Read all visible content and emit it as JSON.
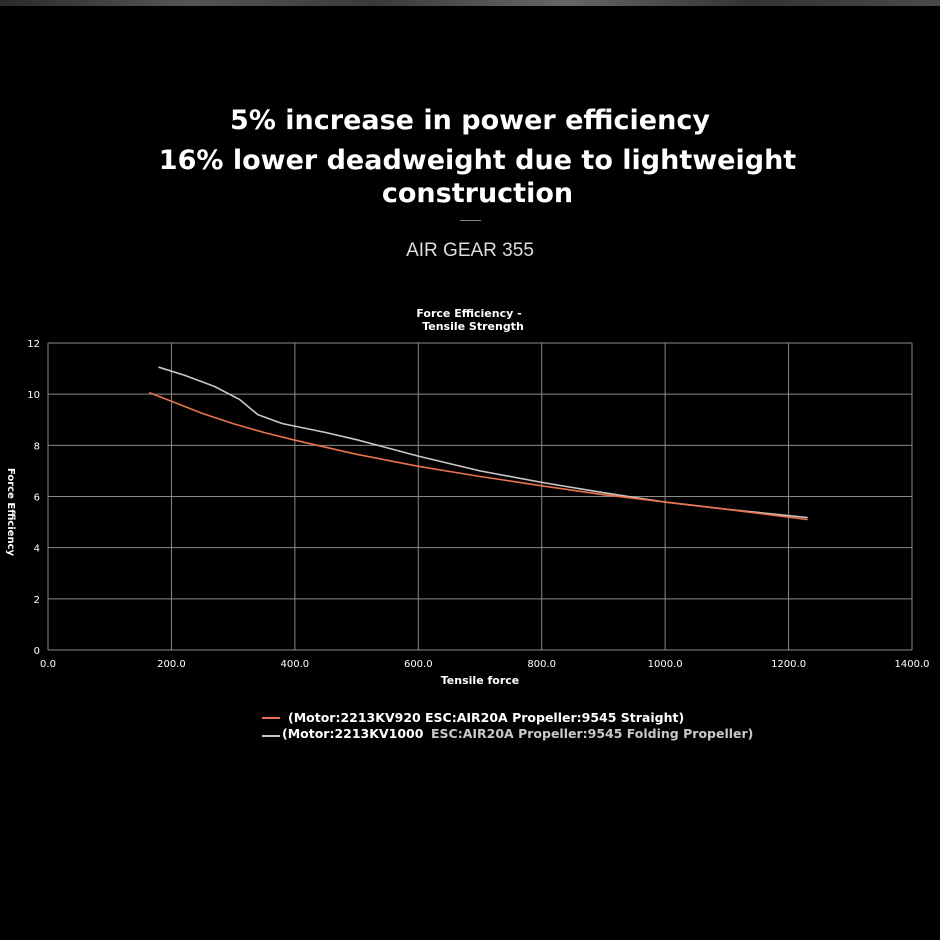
{
  "headline": {
    "line1": "5% increase in power efficiency",
    "line2": "16% lower deadweight due to lightweight construction"
  },
  "product_name": "AIR GEAR 355",
  "colors": {
    "background": "#000000",
    "series_920": "#e8734e",
    "series_1000": "#c8c8c8",
    "grid": "#8a8a8a"
  },
  "chart_data": {
    "type": "line",
    "title": "Force Efficiency - Tensile Strength",
    "title_lines": [
      "Force Efficiency -",
      "Tensile Strength"
    ],
    "xlabel": "Tensile force",
    "ylabel": "Force Efficiency",
    "xlim": [
      0,
      1400
    ],
    "ylim": [
      0,
      12
    ],
    "xticks": [
      0,
      200,
      400,
      600,
      800,
      1000,
      1200,
      1400
    ],
    "xtick_labels": [
      "0.0",
      "200.0",
      "400.0",
      "600.0",
      "800.0",
      "1000.0",
      "1200.0",
      "1400.0"
    ],
    "yticks": [
      0,
      2,
      4,
      6,
      8,
      10,
      12
    ],
    "ytick_labels": [
      "0",
      "2",
      "4",
      "6",
      "8",
      "10",
      "12"
    ],
    "grid": true,
    "series": [
      {
        "name": "(Motor:2213KV920",
        "desc": "ESC:AIR20A Propeller:9545 Straight)",
        "color": "#e8734e",
        "points": [
          [
            165,
            10.05
          ],
          [
            200,
            9.72
          ],
          [
            250,
            9.25
          ],
          [
            300,
            8.85
          ],
          [
            350,
            8.5
          ],
          [
            400,
            8.2
          ],
          [
            500,
            7.65
          ],
          [
            600,
            7.18
          ],
          [
            700,
            6.78
          ],
          [
            800,
            6.42
          ],
          [
            900,
            6.07
          ],
          [
            1000,
            5.78
          ],
          [
            1100,
            5.5
          ],
          [
            1230,
            5.1
          ]
        ]
      },
      {
        "name": "(Motor:2213KV1000",
        "desc": "ESC:AIR20A Propeller:9545 Folding Propeller)",
        "color": "#c8c8c8",
        "points": [
          [
            180,
            11.05
          ],
          [
            220,
            10.75
          ],
          [
            270,
            10.3
          ],
          [
            310,
            9.8
          ],
          [
            340,
            9.2
          ],
          [
            380,
            8.85
          ],
          [
            450,
            8.5
          ],
          [
            500,
            8.22
          ],
          [
            600,
            7.58
          ],
          [
            700,
            7.0
          ],
          [
            800,
            6.55
          ],
          [
            900,
            6.15
          ],
          [
            1000,
            5.78
          ],
          [
            1100,
            5.5
          ],
          [
            1230,
            5.18
          ]
        ]
      }
    ]
  }
}
